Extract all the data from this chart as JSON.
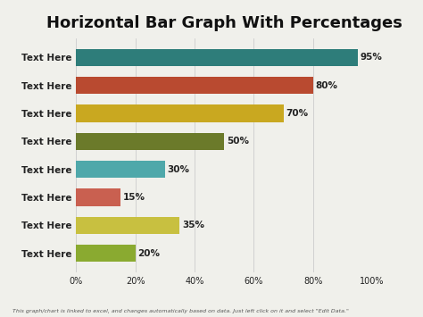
{
  "title": "Horizontal Bar Graph With Percentages",
  "categories": [
    "Text Here",
    "Text Here",
    "Text Here",
    "Text Here",
    "Text Here",
    "Text Here",
    "Text Here",
    "Text Here"
  ],
  "values": [
    95,
    80,
    70,
    50,
    30,
    15,
    35,
    20
  ],
  "colors": [
    "#2e7d7a",
    "#b94a30",
    "#c9a820",
    "#6b7a2a",
    "#4fa8aa",
    "#c96050",
    "#c8c040",
    "#8aaa30"
  ],
  "xlim": [
    0,
    100
  ],
  "xticks": [
    0,
    20,
    40,
    60,
    80,
    100
  ],
  "xticklabels": [
    "0%",
    "20%",
    "40%",
    "60%",
    "80%",
    "100%"
  ],
  "background_color": "#f0f0eb",
  "bar_label_fontsize": 7.5,
  "title_fontsize": 13,
  "tick_fontsize": 7,
  "ylabel_fontsize": 7.5,
  "footer_text": "This graph/chart is linked to excel, and changes automatically based on data. Just left click on it and select \"Edit Data.\"",
  "grid_color": "#cccccc"
}
